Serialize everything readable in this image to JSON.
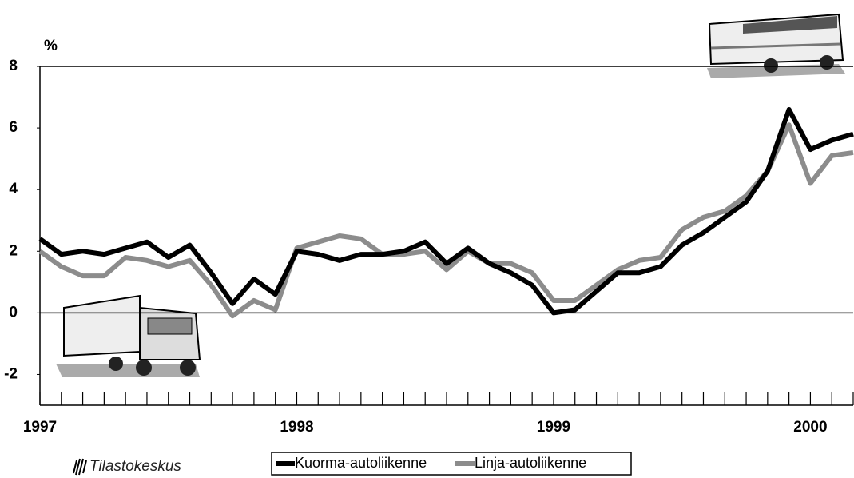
{
  "chart_data": {
    "type": "line",
    "y_label": "%",
    "source": "Tilastokeskus",
    "categories": [
      "1997",
      null,
      null,
      null,
      null,
      null,
      null,
      null,
      null,
      null,
      null,
      null,
      "1998",
      null,
      null,
      null,
      null,
      null,
      null,
      null,
      null,
      null,
      null,
      null,
      "1999",
      null,
      null,
      null,
      null,
      null,
      null,
      null,
      null,
      null,
      null,
      null,
      "2000",
      null,
      null
    ],
    "series": [
      {
        "name": "Kuorma-autoliikenne",
        "color": "#000000",
        "values": [
          2.4,
          1.9,
          2.0,
          1.9,
          2.1,
          2.3,
          1.8,
          2.2,
          1.3,
          0.3,
          1.1,
          0.6,
          2.0,
          1.9,
          1.7,
          1.9,
          1.9,
          2.0,
          2.3,
          1.6,
          2.1,
          1.6,
          1.3,
          0.9,
          0.0,
          0.1,
          0.7,
          1.3,
          1.3,
          1.5,
          2.2,
          2.6,
          3.1,
          3.6,
          4.6,
          6.6,
          5.3,
          5.6,
          5.8
        ]
      },
      {
        "name": "Linja-autoliikenne",
        "color": "#8c8c8c",
        "values": [
          2.0,
          1.5,
          1.2,
          1.2,
          1.8,
          1.7,
          1.5,
          1.7,
          0.9,
          -0.1,
          0.4,
          0.1,
          2.1,
          2.3,
          2.5,
          2.4,
          1.9,
          1.9,
          2.0,
          1.4,
          2.0,
          1.6,
          1.6,
          1.3,
          0.4,
          0.4,
          0.9,
          1.4,
          1.7,
          1.8,
          2.7,
          3.1,
          3.3,
          3.8,
          4.6,
          6.1,
          4.2,
          5.1,
          5.2
        ]
      }
    ],
    "ylim": [
      -3,
      8
    ],
    "yticks": [
      -2,
      0,
      2,
      4,
      6,
      8
    ],
    "zero_line": true
  }
}
